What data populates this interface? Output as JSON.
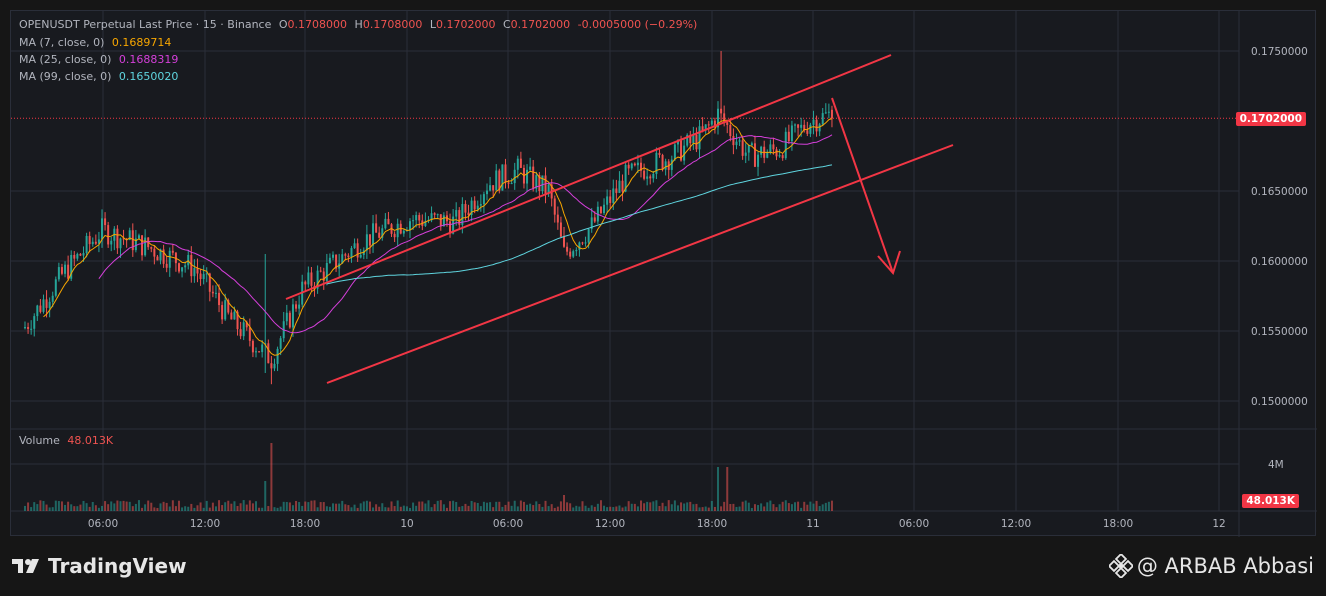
{
  "header": {
    "symbol_line": "OPENUSDT Perpetual Last Price · 15 · Binance",
    "ohlc": {
      "o_label": "O",
      "o": "0.1708000",
      "h_label": "H",
      "h": "0.1708000",
      "l_label": "L",
      "l": "0.1702000",
      "c_label": "C",
      "c": "0.1702000",
      "change": "-0.0005000 (−0.29%)"
    },
    "ma7": {
      "label": "MA (7, close, 0)",
      "value": "0.1689714",
      "color": "#f7a600"
    },
    "ma25": {
      "label": "MA (25, close, 0)",
      "value": "0.1688319",
      "color": "#d53fda"
    },
    "ma99": {
      "label": "MA (99, close, 0)",
      "value": "0.1650020",
      "color": "#5fd5df"
    },
    "volume_label": "Volume",
    "volume_value": "48.013K"
  },
  "price_axis": {
    "ticks": [
      "0.1750000",
      "0.1650000",
      "0.1600000",
      "0.1550000",
      "0.1500000"
    ],
    "last_price": "0.1702000"
  },
  "volume_axis": {
    "tick": "4M",
    "last_volume": "48.013K"
  },
  "time_axis": {
    "ticks": [
      "06:00",
      "12:00",
      "18:00",
      "10",
      "06:00",
      "12:00",
      "18:00",
      "11",
      "06:00",
      "12:00",
      "18:00",
      "12"
    ]
  },
  "colors": {
    "up": "#26a69a",
    "down": "#ef5350",
    "annotation": "#f23645",
    "grid": "#2a2e39"
  },
  "footer": {
    "brand": "TradingView",
    "credit": "@ ARBAB Abbasi"
  },
  "chart_data": {
    "type": "candlestick",
    "title": "OPENUSDT Perpetual Last Price · 15 · Binance",
    "ylim": [
      0.1495,
      0.1765
    ],
    "y_ticks": [
      0.175,
      0.165,
      0.16,
      0.155,
      0.15
    ],
    "x_ticks": [
      "06:00",
      "12:00",
      "18:00",
      "10",
      "06:00",
      "12:00",
      "18:00",
      "11",
      "06:00",
      "12:00",
      "18:00",
      "12"
    ],
    "last_price": 0.1702,
    "series": [
      {
        "name": "MA (7, close, 0)",
        "value": 0.1689714
      },
      {
        "name": "MA (25, close, 0)",
        "value": 0.1688319
      },
      {
        "name": "MA (99, close, 0)",
        "value": 0.165002
      }
    ],
    "annotations": [
      {
        "type": "ascending-channel",
        "upper": [
          [
            0.1585,
            "18:00"
          ],
          [
            0.1755,
            "11 01:00"
          ]
        ],
        "lower": [
          [
            0.152,
            "18:00"
          ],
          [
            0.169,
            "11 03:00"
          ]
        ]
      },
      {
        "type": "arrow-down",
        "from": 0.1722,
        "to": 0.16
      }
    ]
  }
}
